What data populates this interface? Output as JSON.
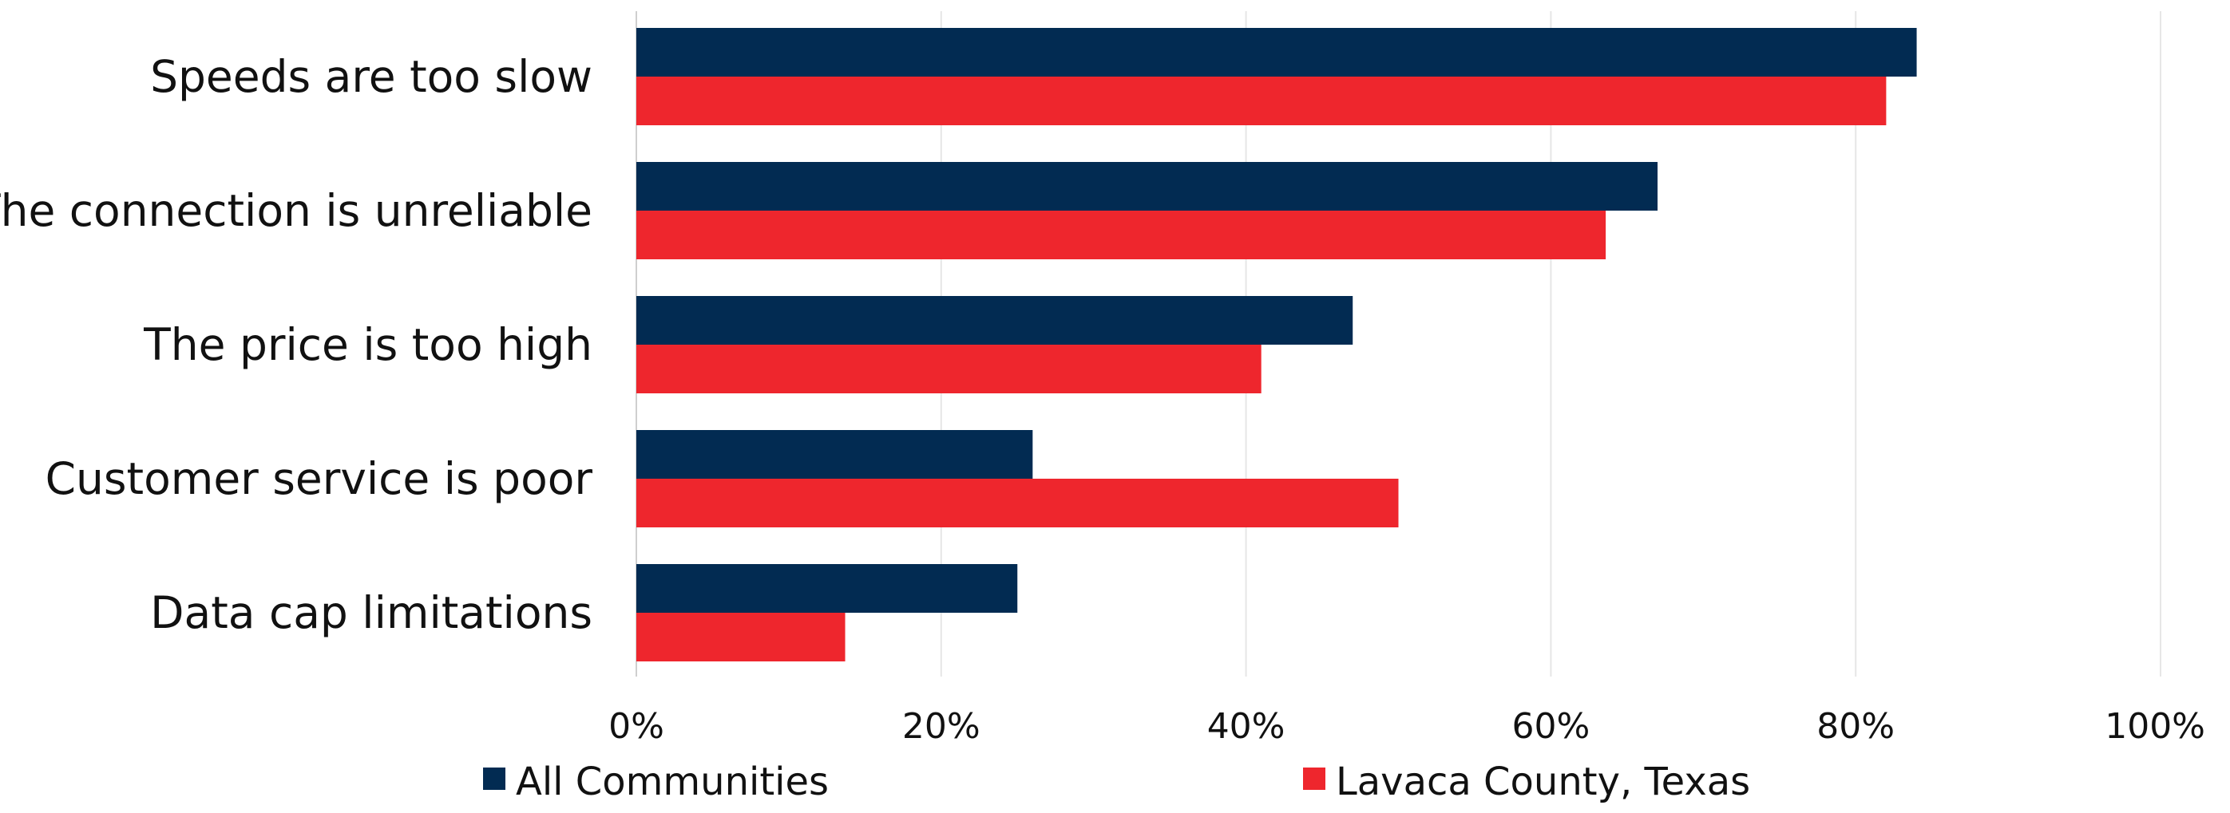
{
  "chart_data": {
    "type": "bar",
    "orientation": "horizontal",
    "categories": [
      "Speeds are too slow",
      "The connection is unreliable",
      "The price is too high",
      "Customer service is poor",
      "Data cap limitations"
    ],
    "series": [
      {
        "name": "All Communities",
        "color": "#022b52",
        "values": [
          84,
          67,
          47,
          26,
          25
        ]
      },
      {
        "name": "Lavaca County, Texas",
        "color": "#ee262d",
        "values": [
          82,
          63.6,
          41,
          50,
          13.7
        ]
      }
    ],
    "xlim": [
      0,
      100
    ],
    "x_ticks": [
      "0%",
      "20%",
      "40%",
      "60%",
      "80%",
      "100%"
    ],
    "x_unit": "%",
    "grid": "vertical",
    "legend_position": "bottom"
  }
}
